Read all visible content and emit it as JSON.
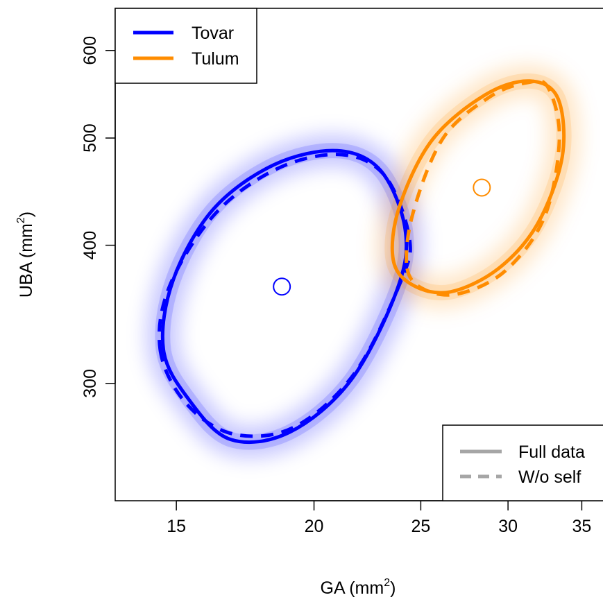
{
  "chart_data": {
    "type": "scatter",
    "xlabel": {
      "main": "GA (mm",
      "sup": "2",
      "close": ")"
    },
    "ylabel": {
      "main": "UBA (mm",
      "sup": "2",
      "close": ")"
    },
    "x_scale": "log",
    "y_scale": "log",
    "xlim": [
      13.2,
      37.5
    ],
    "ylim": [
      235,
      655
    ],
    "x_ticks": [
      15,
      20,
      25,
      30,
      35
    ],
    "y_ticks": [
      300,
      400,
      500,
      600
    ],
    "grid": false,
    "legend_groups": {
      "placement": "top-left",
      "entries": [
        {
          "label": "Tovar",
          "color": "#0000ff"
        },
        {
          "label": "Tulum",
          "color": "#ff8c00"
        }
      ]
    },
    "legend_lines": {
      "placement": "bottom-right",
      "entries": [
        {
          "label": "Full data",
          "style": "solid",
          "color": "#a6a6a6"
        },
        {
          "label": "W/o self",
          "style": "dashed",
          "color": "#a6a6a6"
        }
      ]
    },
    "series": [
      {
        "name": "Tovar",
        "color": "#0000ff",
        "centroid": [
          18.7,
          367
        ],
        "full_data_ellipse": [
          [
            14.6,
            322
          ],
          [
            15.4,
            290
          ],
          [
            16.8,
            267
          ],
          [
            19.0,
            271
          ],
          [
            21.6,
            302
          ],
          [
            23.8,
            365
          ],
          [
            24.2,
            413
          ],
          [
            23.0,
            467
          ],
          [
            21.0,
            487
          ],
          [
            18.4,
            473
          ],
          [
            16.2,
            431
          ],
          [
            14.9,
            372
          ],
          [
            14.6,
            322
          ]
        ],
        "without_self_ellipse": [
          [
            14.5,
            322
          ],
          [
            15.3,
            288
          ],
          [
            16.9,
            270
          ],
          [
            19.2,
            274
          ],
          [
            21.8,
            307
          ],
          [
            24.0,
            372
          ],
          [
            24.4,
            407
          ],
          [
            23.2,
            462
          ],
          [
            21.2,
            483
          ],
          [
            18.6,
            470
          ],
          [
            16.3,
            428
          ],
          [
            14.8,
            368
          ],
          [
            14.5,
            322
          ]
        ]
      },
      {
        "name": "Tulum",
        "color": "#ff8c00",
        "centroid": [
          28.4,
          451
        ],
        "full_data_ellipse": [
          [
            23.6,
            388
          ],
          [
            24.6,
            368
          ],
          [
            26.6,
            363
          ],
          [
            29.4,
            381
          ],
          [
            31.9,
            418
          ],
          [
            33.6,
            481
          ],
          [
            33.3,
            543
          ],
          [
            31.4,
            563
          ],
          [
            28.6,
            547
          ],
          [
            25.6,
            498
          ],
          [
            23.9,
            433
          ],
          [
            23.6,
            388
          ]
        ],
        "without_self_ellipse": [
          [
            24.3,
            381
          ],
          [
            25.3,
            364
          ],
          [
            27.2,
            362
          ],
          [
            29.9,
            380
          ],
          [
            32.4,
            425
          ],
          [
            33.4,
            500
          ],
          [
            32.6,
            556
          ],
          [
            31.2,
            561
          ],
          [
            28.9,
            545
          ],
          [
            26.2,
            500
          ],
          [
            24.6,
            428
          ],
          [
            24.3,
            381
          ]
        ]
      }
    ]
  }
}
